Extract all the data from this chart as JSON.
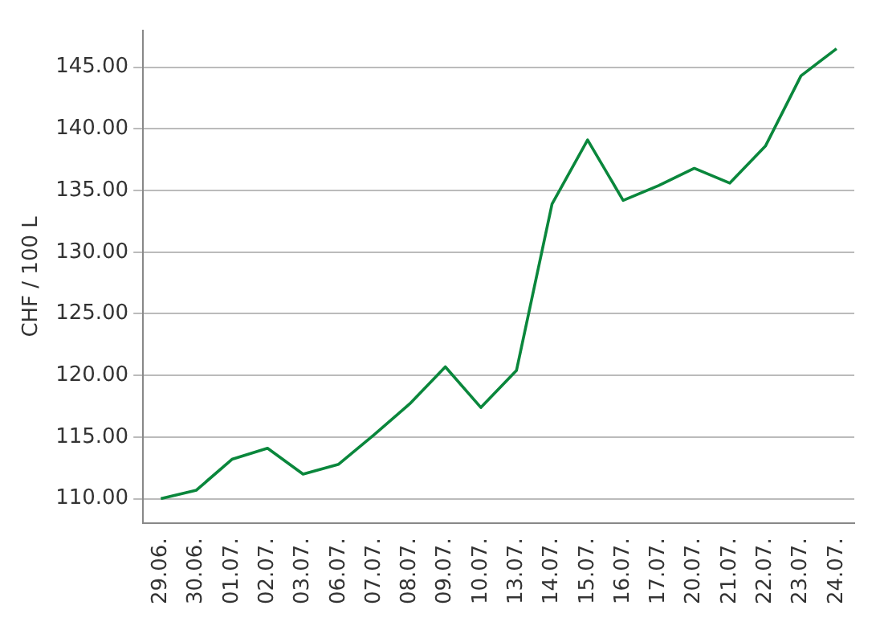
{
  "chart_data": {
    "type": "line",
    "ylabel": "CHF / 100 L",
    "categories": [
      "29.06.",
      "30.06.",
      "01.07.",
      "02.07.",
      "03.07.",
      "06.07.",
      "07.07.",
      "08.07.",
      "09.07.",
      "10.07.",
      "13.07.",
      "14.07.",
      "15.07.",
      "16.07.",
      "17.07.",
      "20.07.",
      "21.07.",
      "22.07.",
      "23.07.",
      "24.07."
    ],
    "series": [
      {
        "color": "#0a873c",
        "values": [
          110.0,
          110.7,
          113.2,
          114.1,
          112.0,
          112.8,
          115.2,
          117.7,
          120.7,
          117.4,
          120.4,
          133.9,
          139.1,
          134.2,
          135.4,
          136.8,
          135.6,
          138.6,
          144.3,
          146.5
        ]
      }
    ],
    "ylim": [
      108,
      148
    ],
    "yticks": [
      {
        "value": 110,
        "label": "110.00"
      },
      {
        "value": 115,
        "label": "115.00"
      },
      {
        "value": 120,
        "label": "120.00"
      },
      {
        "value": 125,
        "label": "125.00"
      },
      {
        "value": 130,
        "label": "130.00"
      },
      {
        "value": 135,
        "label": "135.00"
      },
      {
        "value": 140,
        "label": "140.00"
      },
      {
        "value": 145,
        "label": "145.00"
      }
    ],
    "grid": "y",
    "legend": false,
    "marker": "none",
    "line_style": "solid"
  }
}
